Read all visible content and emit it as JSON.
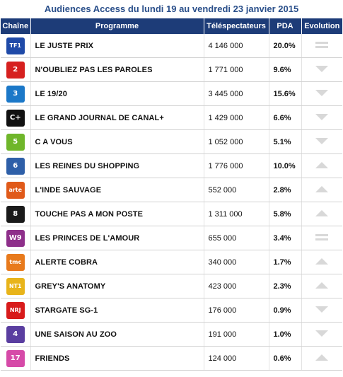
{
  "title": "Audiences Access du lundi 19 au vendredi 23 janvier 2015",
  "headers": {
    "channel": "Chaîne",
    "program": "Programme",
    "viewers": "Téléspectateurs",
    "pda": "PDA",
    "evolution": "Evolution"
  },
  "rows": [
    {
      "channel": "TF1",
      "logo_text": "TF1",
      "logo_color": "#1f4aa8",
      "program": "LE JUSTE PRIX",
      "viewers": "4 146 000",
      "pda": "20.0%",
      "evolution": "equal"
    },
    {
      "channel": "France 2",
      "logo_text": "2",
      "logo_color": "#d6201f",
      "program": "N'OUBLIEZ PAS LES PAROLES",
      "viewers": "1 771 000",
      "pda": "9.6%",
      "evolution": "down"
    },
    {
      "channel": "France 3",
      "logo_text": "3",
      "logo_color": "#1b78c8",
      "program": "LE 19/20",
      "viewers": "3 445 000",
      "pda": "15.6%",
      "evolution": "down"
    },
    {
      "channel": "Canal+",
      "logo_text": "C+",
      "logo_color": "#111111",
      "program": "LE GRAND JOURNAL DE CANAL+",
      "viewers": "1 429 000",
      "pda": "6.6%",
      "evolution": "down"
    },
    {
      "channel": "France 5",
      "logo_text": "5",
      "logo_color": "#6fb62a",
      "program": "C A VOUS",
      "viewers": "1 052 000",
      "pda": "5.1%",
      "evolution": "down"
    },
    {
      "channel": "M6",
      "logo_text": "6",
      "logo_color": "#2e5fa8",
      "program": "LES REINES DU SHOPPING",
      "viewers": "1 776 000",
      "pda": "10.0%",
      "evolution": "up"
    },
    {
      "channel": "Arte",
      "logo_text": "arte",
      "logo_color": "#e05a1a",
      "program": "L'INDE SAUVAGE",
      "viewers": "552 000",
      "pda": "2.8%",
      "evolution": "up"
    },
    {
      "channel": "D8",
      "logo_text": "8",
      "logo_color": "#1a1a1a",
      "program": "TOUCHE PAS A MON POSTE",
      "viewers": "1 311 000",
      "pda": "5.8%",
      "evolution": "up"
    },
    {
      "channel": "W9",
      "logo_text": "W9",
      "logo_color": "#8e2f8a",
      "program": "LES PRINCES DE L'AMOUR",
      "viewers": "655 000",
      "pda": "3.4%",
      "evolution": "equal"
    },
    {
      "channel": "TMC",
      "logo_text": "tmc",
      "logo_color": "#e87a1c",
      "program": "ALERTE COBRA",
      "viewers": "340 000",
      "pda": "1.7%",
      "evolution": "up"
    },
    {
      "channel": "NT1",
      "logo_text": "NT1",
      "logo_color": "#e8b41a",
      "program": "GREY'S ANATOMY",
      "viewers": "423 000",
      "pda": "2.3%",
      "evolution": "up"
    },
    {
      "channel": "NRJ 12",
      "logo_text": "NRJ",
      "logo_color": "#d81b1b",
      "program": "STARGATE SG-1",
      "viewers": "176 000",
      "pda": "0.9%",
      "evolution": "down"
    },
    {
      "channel": "France 4",
      "logo_text": "4",
      "logo_color": "#5a3ea0",
      "program": "UNE SAISON AU ZOO",
      "viewers": "191 000",
      "pda": "1.0%",
      "evolution": "down"
    },
    {
      "channel": "HD1 / 17",
      "logo_text": "17",
      "logo_color": "#d64aa8",
      "program": "FRIENDS",
      "viewers": "124 000",
      "pda": "0.6%",
      "evolution": "up"
    }
  ]
}
